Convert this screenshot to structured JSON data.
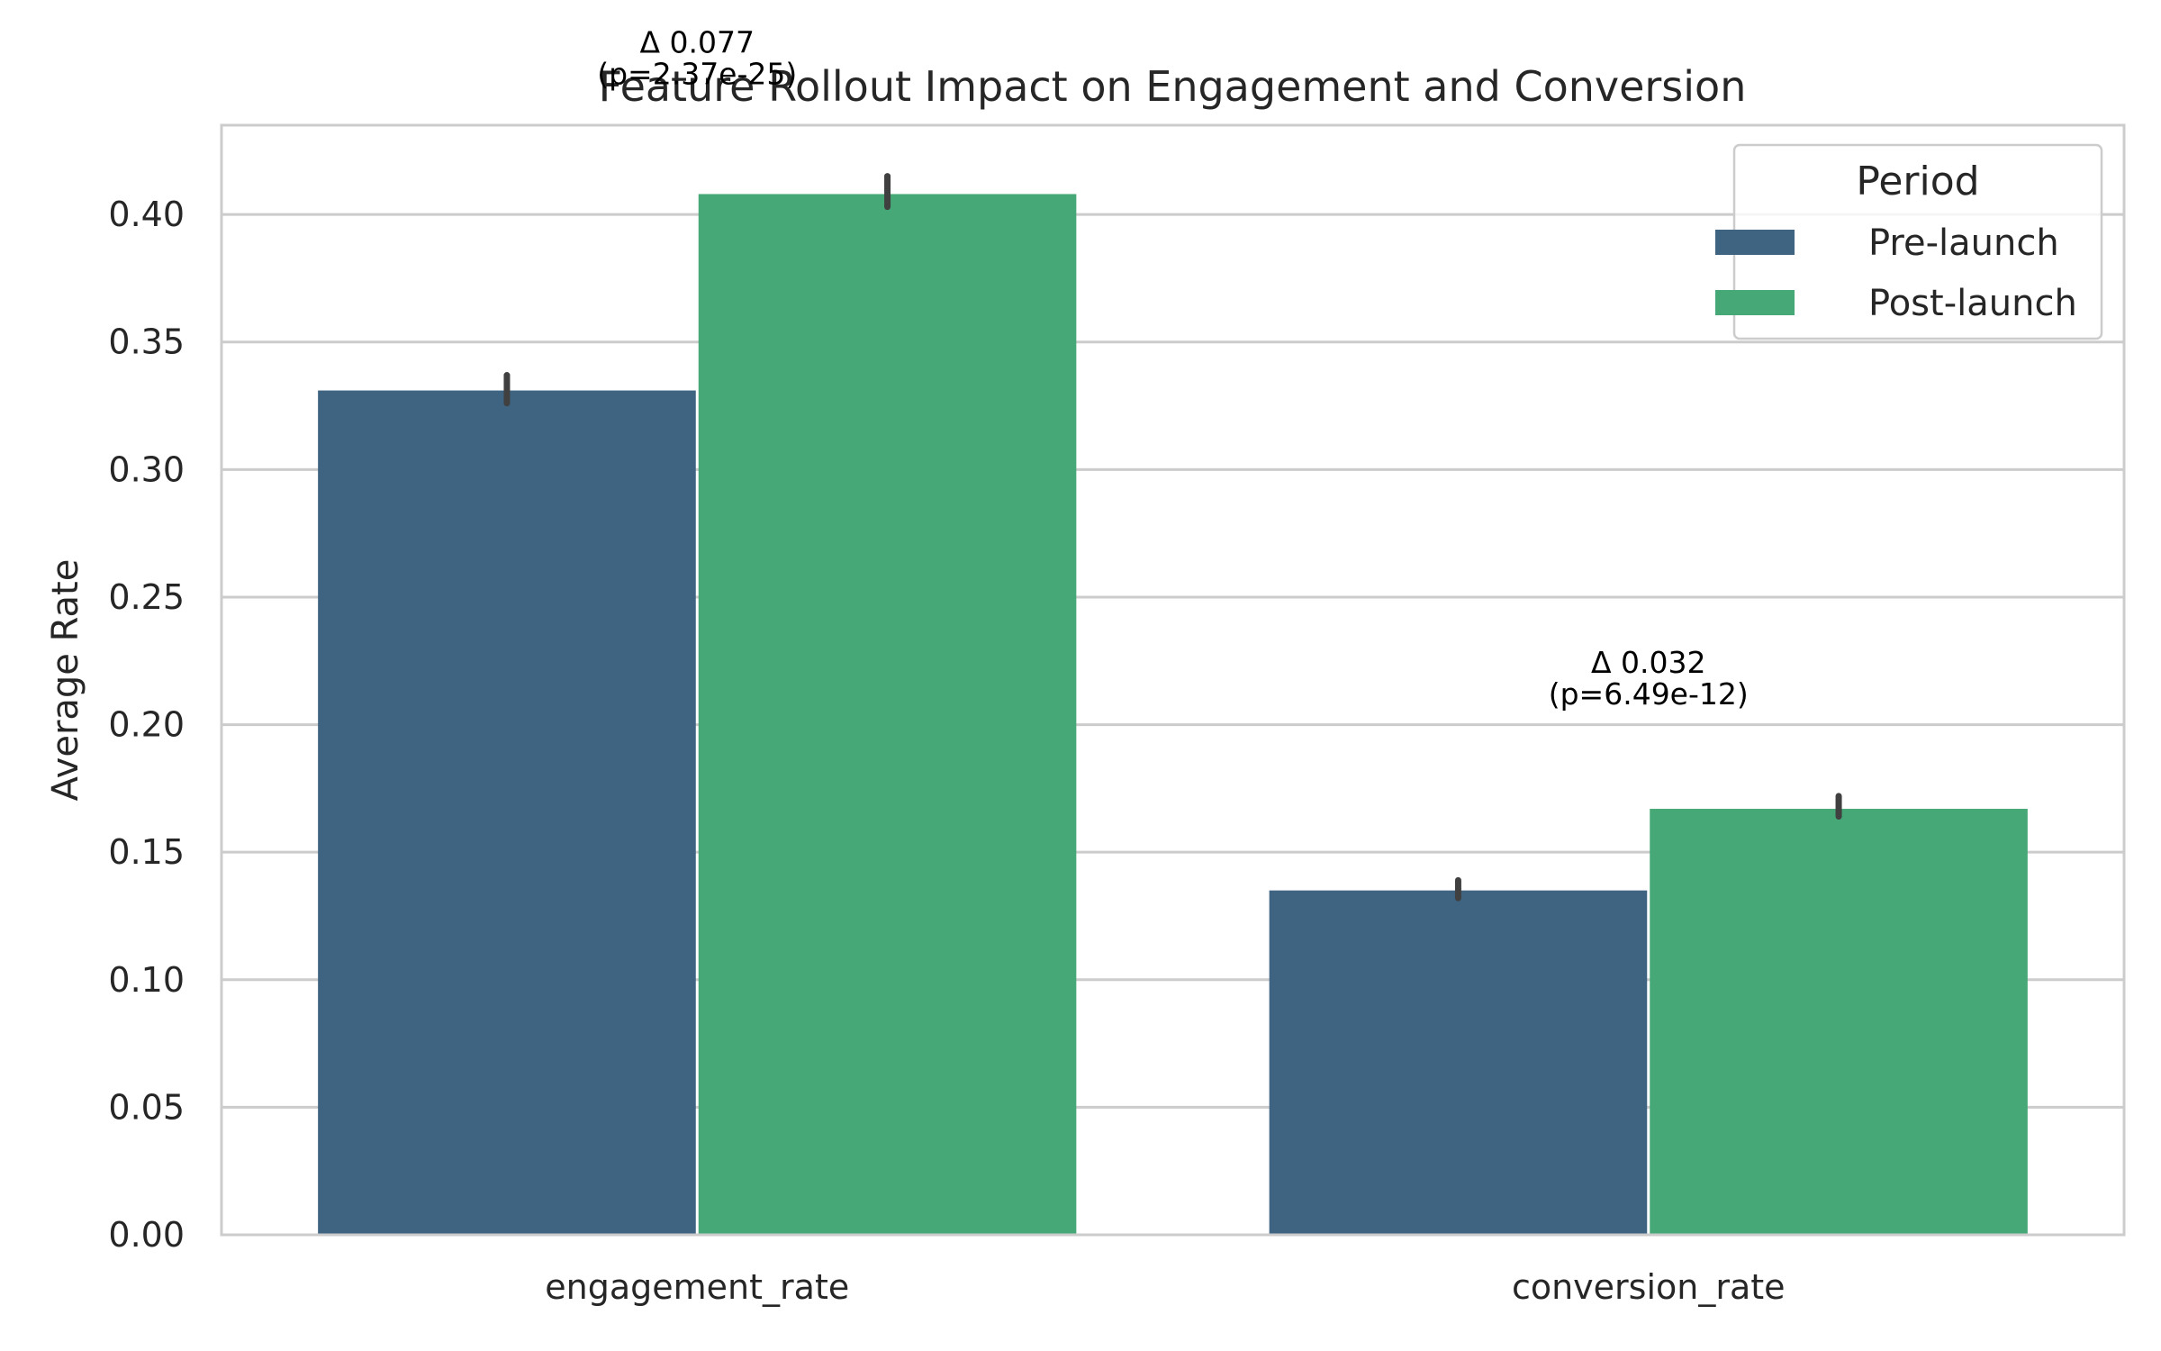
{
  "chart_data": {
    "type": "bar",
    "title": "Feature Rollout Impact on Engagement and Conversion",
    "xlabel": "",
    "ylabel": "Average Rate",
    "categories": [
      "engagement_rate",
      "conversion_rate"
    ],
    "ylim": [
      0,
      0.435
    ],
    "yticks": [
      "0.00",
      "0.05",
      "0.10",
      "0.15",
      "0.20",
      "0.25",
      "0.30",
      "0.35",
      "0.40"
    ],
    "grid": "horizontal",
    "legend": {
      "title": "Period",
      "placement": "top-right"
    },
    "series": [
      {
        "name": "Pre-launch",
        "color": "#3e6482",
        "values": [
          0.331,
          0.135
        ],
        "ci": [
          [
            0.326,
            0.337
          ],
          [
            0.132,
            0.139
          ]
        ]
      },
      {
        "name": "Post-launch",
        "color": "#46a877",
        "values": [
          0.408,
          0.167
        ],
        "ci": [
          [
            0.403,
            0.415
          ],
          [
            0.164,
            0.172
          ]
        ]
      }
    ],
    "annotations": [
      {
        "category": "engagement_rate",
        "line1": "Δ 0.077",
        "line2": "(p=2.37e-25)"
      },
      {
        "category": "conversion_rate",
        "line1": "Δ 0.032",
        "line2": "(p=6.49e-12)"
      }
    ]
  }
}
